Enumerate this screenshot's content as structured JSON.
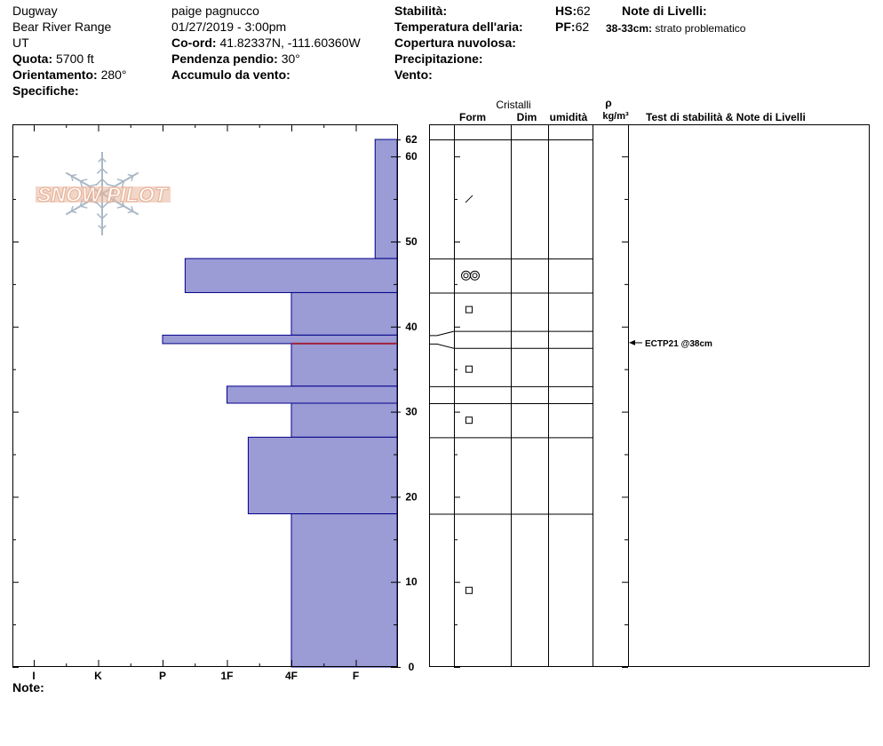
{
  "header": {
    "location": "Dugway",
    "range": "Bear River Range",
    "state": "UT",
    "elevation_label": "Quota:",
    "elevation_value": "5700 ft",
    "aspect_label": "Orientamento:",
    "aspect_value": "280°",
    "specifics_label": "Specifiche:",
    "observer": "paige pagnucco",
    "datetime": "01/27/2019 - 3:00pm",
    "coord_label": "Co-ord:",
    "coord_value": "41.82337N, -111.60360W",
    "slope_label": "Pendenza pendio:",
    "slope_value": "30°",
    "wind_loading_label": "Accumulo da vento:",
    "stability_label": "Stabilità:",
    "air_temp_label": "Temperatura dell'aria:",
    "cloud_label": "Copertura nuvolosa:",
    "precip_label": "Precipitazione:",
    "wind_label": "Vento:",
    "hs_label": "HS:",
    "hs_value": "62",
    "pf_label": "PF:",
    "pf_value": "62",
    "layer_notes_label": "Note di Livelli:",
    "layer_note_range": "38-33cm:",
    "layer_note_text": "strato problematico"
  },
  "table_headers": {
    "crystals": "Cristalli",
    "form": "Form",
    "size": "Dim",
    "moisture": "umidità",
    "rho": "ρ",
    "density_unit": "kg/m³",
    "stability_notes": "Test di stabilità & Note di Livelli"
  },
  "notes_label": "Note:",
  "logo_text": "SNOW PILOT",
  "stability_test": {
    "text": "ECTP21 @38cm",
    "depth": 38
  },
  "colors": {
    "hardness_fill": "#9b9bd5",
    "hardness_stroke": "#00008b",
    "weak_layer": "#a0203c",
    "logo": "#e8b49a",
    "flake": "#aab8c6"
  },
  "chart_data": {
    "type": "bar",
    "orientation": "horizontal-profile",
    "xlabel": "",
    "ylabel": "",
    "y_range": [
      0,
      62
    ],
    "y_ticks": [
      0,
      10,
      20,
      30,
      40,
      50,
      60,
      62
    ],
    "y_tick_labels": [
      "0",
      "10",
      "20",
      "30",
      "40",
      "50",
      "60",
      "62"
    ],
    "hardness_scale": [
      "I",
      "K",
      "P",
      "1F",
      "4F",
      "F"
    ],
    "hardness_scale_index": {
      "I": 1,
      "K": 2,
      "P": 3,
      "1F": 4,
      "4F": 5,
      "F": 6
    },
    "layers": [
      {
        "top": 62,
        "bottom": 48,
        "hardness": "F",
        "hardness_index": 6.3
      },
      {
        "top": 48,
        "bottom": 44,
        "hardness": "P+",
        "hardness_index": 3.35
      },
      {
        "top": 44,
        "bottom": 39,
        "hardness": "4F",
        "hardness_index": 5
      },
      {
        "top": 39,
        "bottom": 38,
        "hardness": "P",
        "hardness_index": 3
      },
      {
        "top": 38,
        "bottom": 33,
        "hardness": "4F",
        "hardness_index": 5
      },
      {
        "top": 33,
        "bottom": 31,
        "hardness": "1F",
        "hardness_index": 4
      },
      {
        "top": 31,
        "bottom": 27,
        "hardness": "4F",
        "hardness_index": 5
      },
      {
        "top": 27,
        "bottom": 18,
        "hardness": "1F+",
        "hardness_index": 4.33
      },
      {
        "top": 18,
        "bottom": 0,
        "hardness": "4F",
        "hardness_index": 5
      }
    ],
    "weak_layer_depth": 38,
    "table_boundaries": [
      62,
      48,
      44,
      39.5,
      37.5,
      33,
      31,
      27,
      18,
      0
    ],
    "crystal_forms": [
      {
        "depth": 55,
        "form": "precipitation-particles"
      },
      {
        "depth": 46,
        "form": "decomposing-fragments"
      },
      {
        "depth": 42,
        "form": "faceted"
      },
      {
        "depth": 35,
        "form": "faceted"
      },
      {
        "depth": 29,
        "form": "faceted"
      },
      {
        "depth": 9,
        "form": "faceted"
      }
    ]
  }
}
